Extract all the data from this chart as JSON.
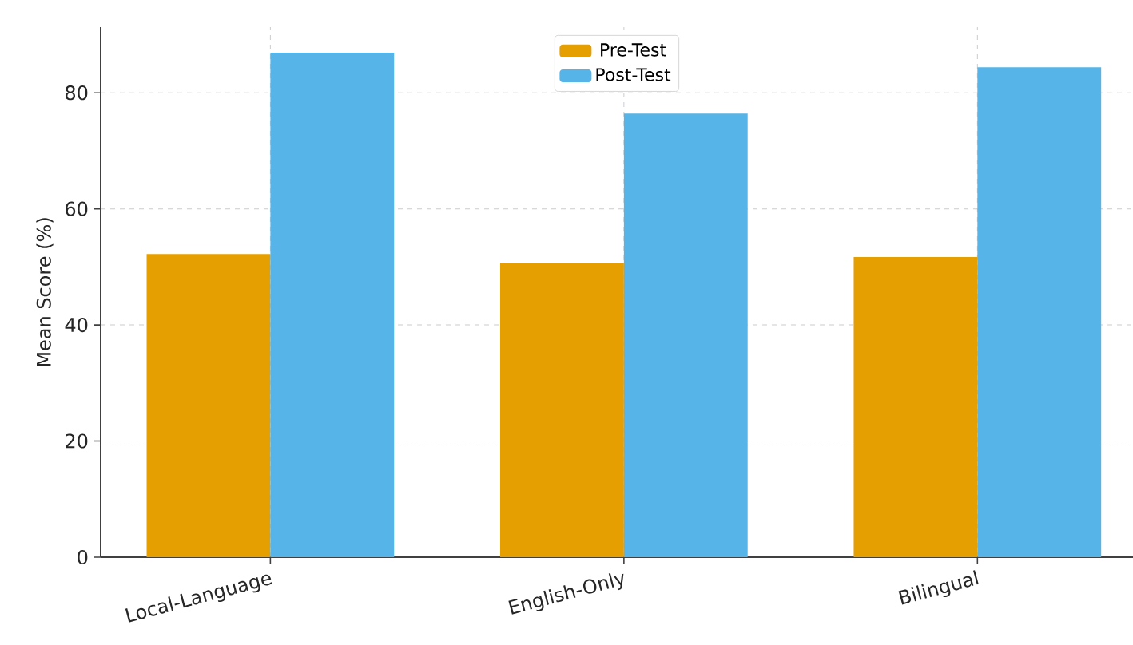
{
  "chart_data": {
    "type": "bar",
    "ylabel": "Mean Score (%)",
    "categories": [
      "Local-Language",
      "English-Only",
      "Bilingual"
    ],
    "series": [
      {
        "name": "Pre-Test",
        "color": "#e69f00",
        "values": [
          52.2,
          50.6,
          51.7
        ]
      },
      {
        "name": "Post-Test",
        "color": "#56b4e9",
        "values": [
          86.9,
          76.4,
          84.4
        ]
      }
    ],
    "ylim": [
      0,
      91.3
    ],
    "yticks": [
      0,
      20,
      40,
      60,
      80
    ],
    "grid": true,
    "legend": "top"
  }
}
